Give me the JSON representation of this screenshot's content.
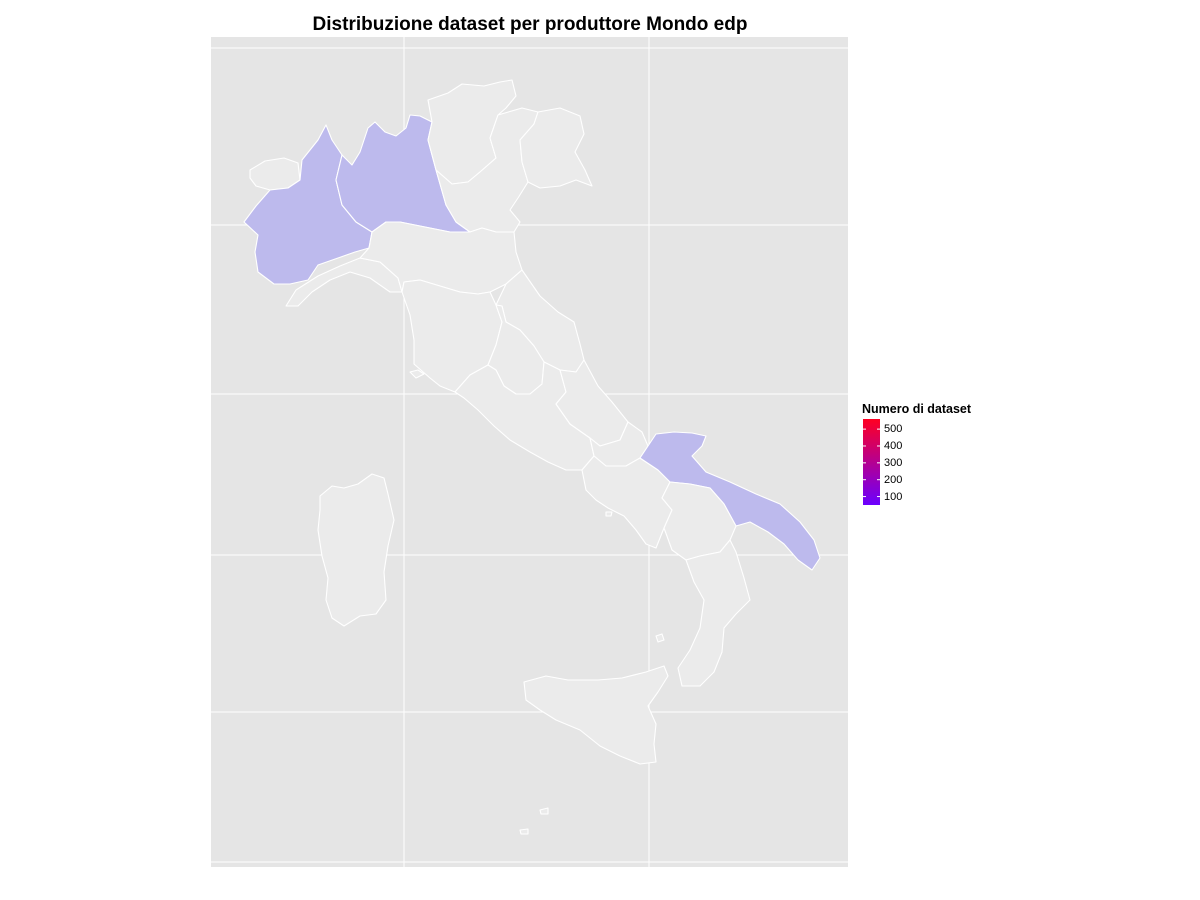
{
  "title": "Distribuzione dataset per produttore Mondo edp",
  "colors": {
    "panel_background": "#e5e5e5",
    "gridline": "#ffffff",
    "region_no_data": "#ebebeb",
    "region_with_data": "#bdbaed",
    "region_border": "#ffffff",
    "scale_low": "#6b00ff",
    "scale_high": "#ff0022"
  },
  "legend": {
    "title": "Numero di dataset",
    "ticks": [
      {
        "value": 500,
        "label": "500"
      },
      {
        "value": 400,
        "label": "400"
      },
      {
        "value": 300,
        "label": "300"
      },
      {
        "value": 200,
        "label": "200"
      },
      {
        "value": 100,
        "label": "100"
      }
    ],
    "range": [
      50,
      560
    ]
  },
  "regions": [
    {
      "name": "Valle d'Aosta",
      "has_data": false
    },
    {
      "name": "Piemonte",
      "has_data": true
    },
    {
      "name": "Lombardia",
      "has_data": true
    },
    {
      "name": "Trentino-Alto Adige",
      "has_data": false
    },
    {
      "name": "Veneto",
      "has_data": false
    },
    {
      "name": "Friuli-Venezia Giulia",
      "has_data": false
    },
    {
      "name": "Liguria",
      "has_data": false
    },
    {
      "name": "Emilia-Romagna",
      "has_data": false
    },
    {
      "name": "Toscana",
      "has_data": false
    },
    {
      "name": "Marche",
      "has_data": false
    },
    {
      "name": "Umbria",
      "has_data": false
    },
    {
      "name": "Lazio",
      "has_data": false
    },
    {
      "name": "Abruzzo",
      "has_data": false
    },
    {
      "name": "Molise",
      "has_data": false
    },
    {
      "name": "Campania",
      "has_data": false
    },
    {
      "name": "Puglia",
      "has_data": true
    },
    {
      "name": "Basilicata",
      "has_data": false
    },
    {
      "name": "Calabria",
      "has_data": false
    },
    {
      "name": "Sicilia",
      "has_data": false
    },
    {
      "name": "Sardegna",
      "has_data": false
    }
  ]
}
